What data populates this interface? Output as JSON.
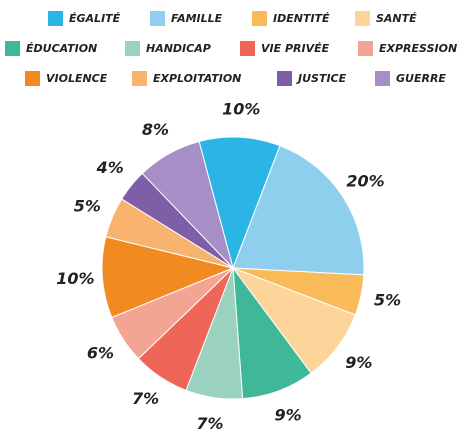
{
  "chart_data": {
    "type": "pie",
    "categories": [
      "ÉGALITÉ",
      "FAMILLE",
      "IDENTITÉ",
      "SANTÉ",
      "ÉDUCATION",
      "HANDICAP",
      "VIE PRIVÉE",
      "EXPRESSION",
      "VIOLENCE",
      "EXPLOITATION",
      "JUSTICE",
      "GUERRE"
    ],
    "values": [
      10,
      20,
      5,
      9,
      9,
      7,
      7,
      6,
      10,
      5,
      4,
      8
    ],
    "value_labels": [
      "10%",
      "20%",
      "5%",
      "9%",
      "9%",
      "7%",
      "7%",
      "6%",
      "10%",
      "5%",
      "4%",
      "8%"
    ],
    "colors": [
      "#2bb5e5",
      "#8fcfee",
      "#f9bb5a",
      "#fdd49a",
      "#3fb89a",
      "#9ad2bf",
      "#ef6558",
      "#f4a493",
      "#f08a21",
      "#f8b46e",
      "#7e5ea6",
      "#a58fc6"
    ],
    "legend": "top"
  }
}
